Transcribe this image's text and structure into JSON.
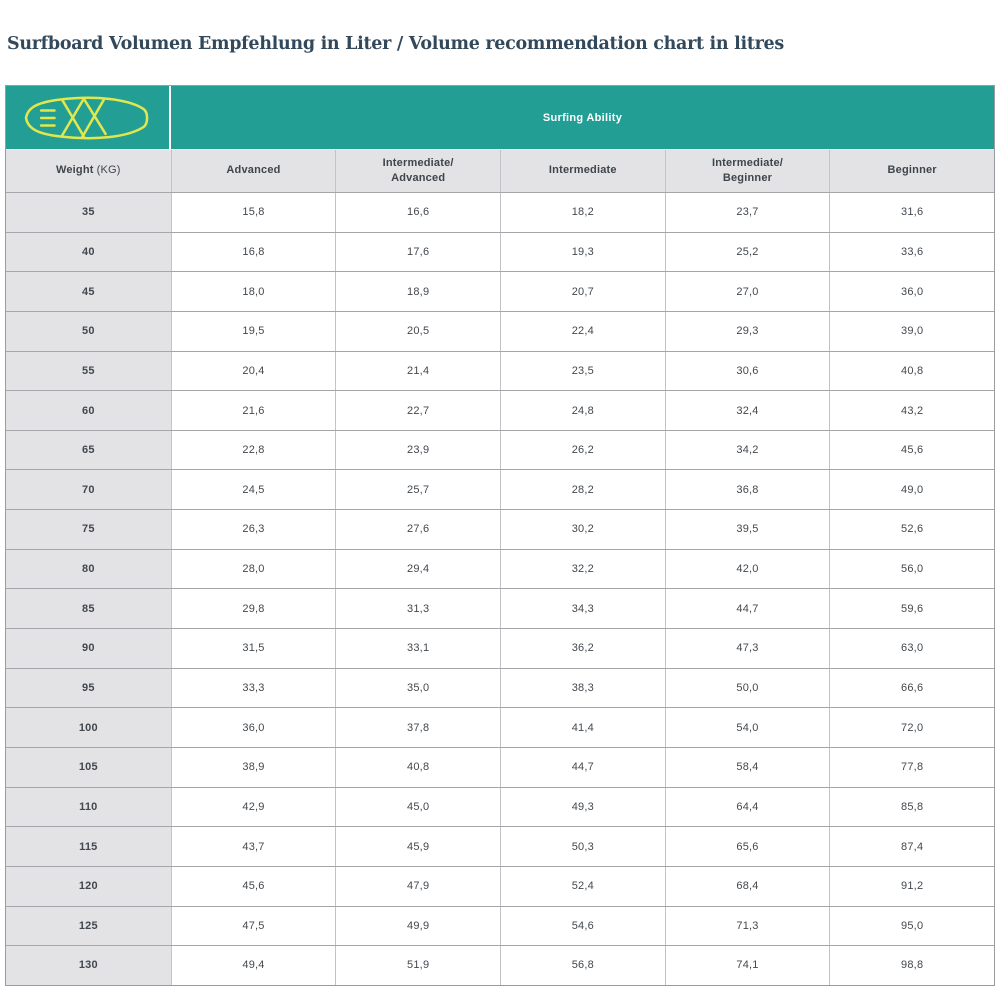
{
  "colors": {
    "teal": "#239e95",
    "logo_yellow": "#e2e74b",
    "title_text": "#32495c",
    "header_bg": "#e3e3e5",
    "cell_text": "#42484e",
    "border_dark": "#a6a6aa",
    "border_light": "#c3c3c7"
  },
  "banner": {
    "logo_icon": "surfboard-logo",
    "surfing_ability_label": "Surfing Ability"
  },
  "chart_data": {
    "type": "table",
    "title": "Surfboard Volumen Empfehlung in Liter / Volume recommendation chart in litres",
    "group_header": "Surfing Ability",
    "weight_column": {
      "label": "Weight",
      "unit": "(KG)"
    },
    "ability_columns": [
      "Advanced",
      "Intermediate/\nAdvanced",
      "Intermediate",
      "Intermediate/\nBeginner",
      "Beginner"
    ],
    "rows": [
      [
        "35",
        "15,8",
        "16,6",
        "18,2",
        "23,7",
        "31,6"
      ],
      [
        "40",
        "16,8",
        "17,6",
        "19,3",
        "25,2",
        "33,6"
      ],
      [
        "45",
        "18,0",
        "18,9",
        "20,7",
        "27,0",
        "36,0"
      ],
      [
        "50",
        "19,5",
        "20,5",
        "22,4",
        "29,3",
        "39,0"
      ],
      [
        "55",
        "20,4",
        "21,4",
        "23,5",
        "30,6",
        "40,8"
      ],
      [
        "60",
        "21,6",
        "22,7",
        "24,8",
        "32,4",
        "43,2"
      ],
      [
        "65",
        "22,8",
        "23,9",
        "26,2",
        "34,2",
        "45,6"
      ],
      [
        "70",
        "24,5",
        "25,7",
        "28,2",
        "36,8",
        "49,0"
      ],
      [
        "75",
        "26,3",
        "27,6",
        "30,2",
        "39,5",
        "52,6"
      ],
      [
        "80",
        "28,0",
        "29,4",
        "32,2",
        "42,0",
        "56,0"
      ],
      [
        "85",
        "29,8",
        "31,3",
        "34,3",
        "44,7",
        "59,6"
      ],
      [
        "90",
        "31,5",
        "33,1",
        "36,2",
        "47,3",
        "63,0"
      ],
      [
        "95",
        "33,3",
        "35,0",
        "38,3",
        "50,0",
        "66,6"
      ],
      [
        "100",
        "36,0",
        "37,8",
        "41,4",
        "54,0",
        "72,0"
      ],
      [
        "105",
        "38,9",
        "40,8",
        "44,7",
        "58,4",
        "77,8"
      ],
      [
        "110",
        "42,9",
        "45,0",
        "49,3",
        "64,4",
        "85,8"
      ],
      [
        "115",
        "43,7",
        "45,9",
        "50,3",
        "65,6",
        "87,4"
      ],
      [
        "120",
        "45,6",
        "47,9",
        "52,4",
        "68,4",
        "91,2"
      ],
      [
        "125",
        "47,5",
        "49,9",
        "54,6",
        "71,3",
        "95,0"
      ],
      [
        "130",
        "49,4",
        "51,9",
        "56,8",
        "74,1",
        "98,8"
      ]
    ]
  }
}
